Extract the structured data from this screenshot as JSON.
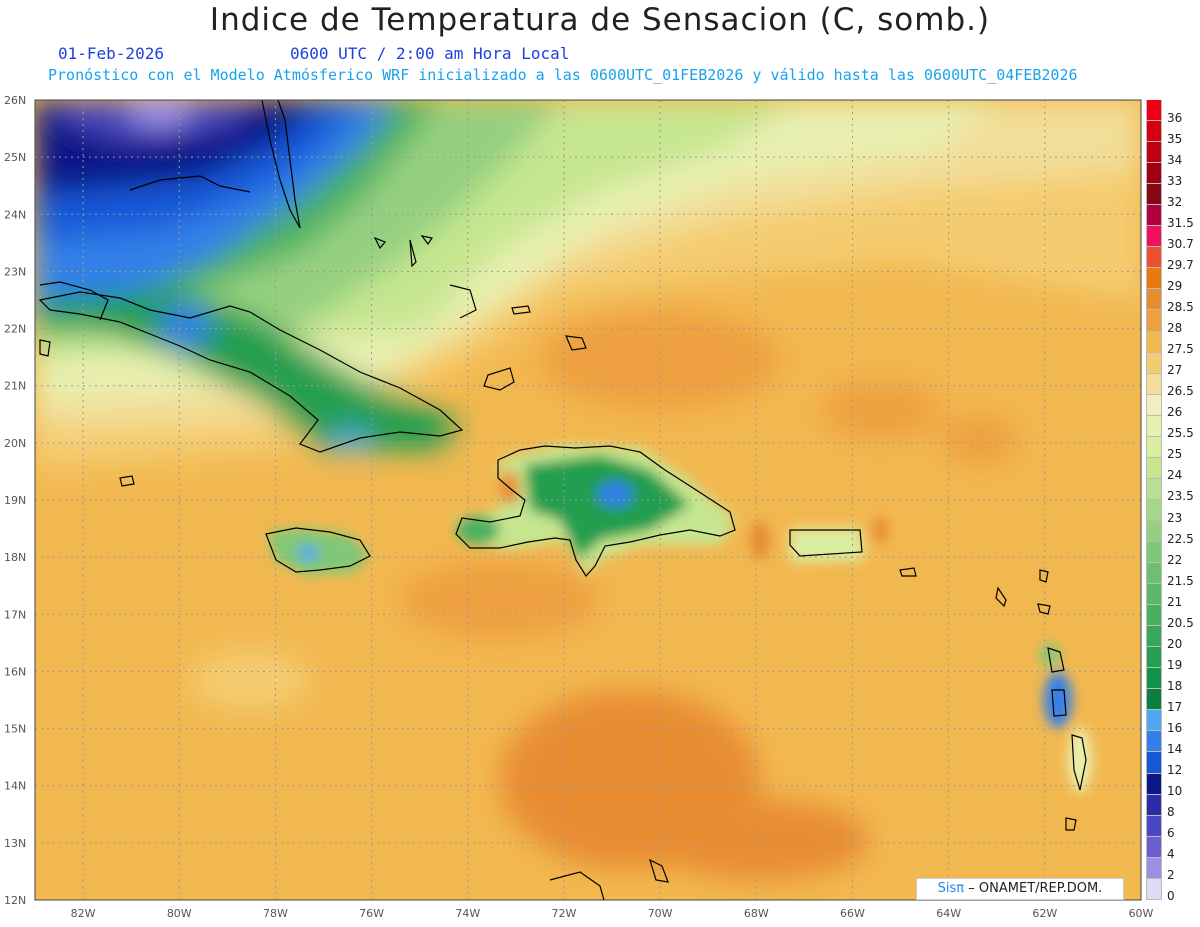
{
  "header": {
    "title": "Indice de Temperatura de Sensacion (C, somb.)",
    "date": "01-Feb-2026",
    "time": "0600 UTC / 2:00 am Hora Local",
    "forecast": "Pronóstico con el Modelo Atmósferico WRF inicializado a las 0600UTC_01FEB2026 y válido hasta las  0600UTC_04FEB2026"
  },
  "map": {
    "lat_range": [
      12,
      26
    ],
    "lon_range": [
      -83,
      -60
    ],
    "lat_labels": [
      "26N",
      "25N",
      "24N",
      "23N",
      "22N",
      "21N",
      "20N",
      "19N",
      "18N",
      "17N",
      "16N",
      "15N",
      "14N",
      "13N",
      "12N"
    ],
    "lon_labels": [
      "82W",
      "80W",
      "78W",
      "76W",
      "74W",
      "72W",
      "70W",
      "68W",
      "66W",
      "64W",
      "62W",
      "60W"
    ]
  },
  "legend": {
    "labels": [
      "36",
      "35",
      "34",
      "33",
      "32",
      "31.5",
      "30.7",
      "29.7",
      "29",
      "28.5",
      "28",
      "27.5",
      "27",
      "26.5",
      "26",
      "25.5",
      "25",
      "24",
      "23.5",
      "23",
      "22.5",
      "22",
      "21.5",
      "21",
      "20.5",
      "20",
      "19",
      "18",
      "17",
      "16",
      "14",
      "12",
      "10",
      "8",
      "6",
      "4",
      "2",
      "0"
    ],
    "colors": [
      "#f00010",
      "#d80010",
      "#c00010",
      "#a00010",
      "#880818",
      "#b00040",
      "#f01060",
      "#f05030",
      "#e87a10",
      "#e88c30",
      "#eea040",
      "#f2b850",
      "#f4cc70",
      "#f2de98",
      "#f2eebe",
      "#e8f0b0",
      "#daeea0",
      "#c6e690",
      "#b8e090",
      "#a4d888",
      "#94d080",
      "#80c878",
      "#6ec070",
      "#5cb868",
      "#48b060",
      "#38a858",
      "#249e50",
      "#12924a",
      "#0c7e40",
      "#50a8f0",
      "#3080e8",
      "#1458d8",
      "#0c1888",
      "#2c2ca8",
      "#4848c0",
      "#6c60d0",
      "#9c90e4",
      "#dcdcf4"
    ]
  },
  "credit": {
    "brand": "Sisπ",
    "text": "– ONAMET/REP.DOM."
  }
}
